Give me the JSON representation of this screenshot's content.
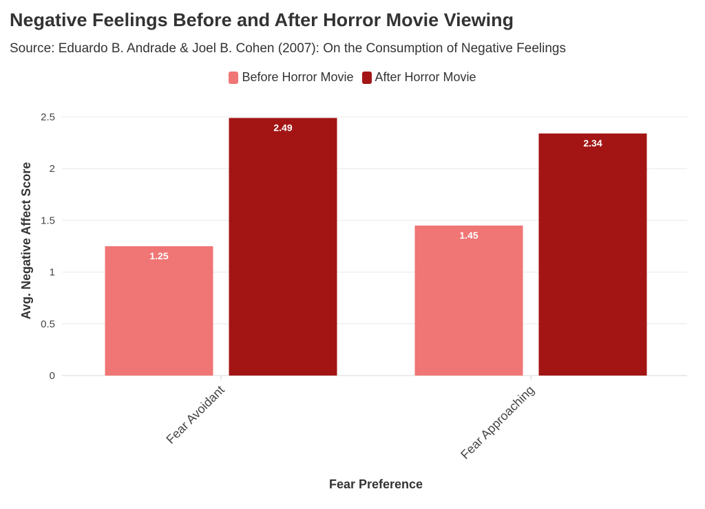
{
  "chart_data": {
    "type": "bar",
    "title": "Negative Feelings Before and After Horror Movie Viewing",
    "subtitle": "Source: Eduardo B. Andrade & Joel B. Cohen (2007): On the Consumption of Negative Feelings",
    "categories": [
      "Fear Avoidant",
      "Fear Approaching"
    ],
    "series": [
      {
        "name": "Before Horror Movie",
        "values": [
          1.25,
          1.45
        ],
        "color": "#f07575"
      },
      {
        "name": "After Horror Movie",
        "values": [
          2.49,
          2.34
        ],
        "color": "#a31515"
      }
    ],
    "xlabel": "Fear Preference",
    "ylabel": "Avg. Negative Affect Score",
    "ylim": [
      0,
      2.6
    ],
    "yticks": [
      0,
      0.5,
      1,
      1.5,
      2,
      2.5
    ],
    "ytick_labels": [
      "0",
      "0.5",
      "1",
      "1.5",
      "2",
      "2.5"
    ],
    "grid": true,
    "legend_position": "top-center"
  }
}
